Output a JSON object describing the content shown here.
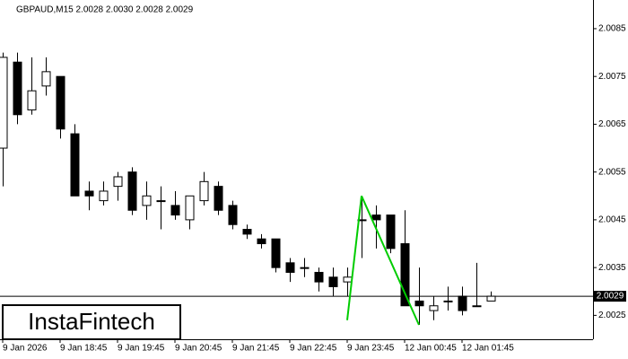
{
  "chart_data": {
    "type": "candlestick",
    "title": "GBPAUD,M15  2.0028 2.0030 2.0028 2.0029",
    "brand": "InstaFintech",
    "categories": [
      "9 Jan 2026",
      null,
      null,
      null,
      "9 Jan 18:45",
      null,
      null,
      null,
      "9 Jan 19:45",
      null,
      null,
      null,
      "9 Jan 20:45",
      null,
      null,
      null,
      "9 Jan 21:45",
      null,
      null,
      null,
      "9 Jan 22:45",
      null,
      null,
      null,
      "9 Jan 23:45",
      null,
      null,
      null,
      "12 Jan 00:45",
      null,
      null,
      null,
      "12 Jan 01:45",
      null,
      null
    ],
    "open": [
      2.006,
      2.0078,
      2.0068,
      2.0073,
      2.0075,
      2.0063,
      2.0051,
      2.0049,
      2.0052,
      2.0055,
      2.0048,
      2.0049,
      2.0048,
      2.0045,
      2.0049,
      2.0052,
      2.0048,
      2.0043,
      2.0041,
      2.0041,
      2.0036,
      2.0035,
      2.0034,
      2.0033,
      2.0032,
      2.0045,
      2.0046,
      2.0046,
      2.004,
      2.0028,
      2.0026,
      2.0028,
      2.0029,
      2.0027,
      2.0028
    ],
    "high": [
      2.008,
      2.008,
      2.0079,
      2.0079,
      2.0075,
      2.0065,
      2.0053,
      2.0053,
      2.0055,
      2.0056,
      2.0053,
      2.0052,
      2.0051,
      2.005,
      2.0055,
      2.0053,
      2.0049,
      2.0044,
      2.0042,
      2.0041,
      2.0037,
      2.0037,
      2.0035,
      2.0035,
      2.0035,
      2.005,
      2.0048,
      2.0046,
      2.0047,
      2.0035,
      2.0029,
      2.0031,
      2.0031,
      2.0036,
      2.003
    ],
    "low": [
      2.0052,
      2.0065,
      2.0067,
      2.0071,
      2.0062,
      2.005,
      2.0047,
      2.0048,
      2.0049,
      2.0046,
      2.0045,
      2.0043,
      2.0045,
      2.0043,
      2.0048,
      2.0046,
      2.0043,
      2.0041,
      2.0039,
      2.0034,
      2.0032,
      2.0033,
      2.003,
      2.0029,
      2.0029,
      2.0037,
      2.0039,
      2.0038,
      2.0027,
      2.0023,
      2.0024,
      2.0026,
      2.0025,
      2.0027,
      2.0028
    ],
    "close": [
      2.0079,
      2.0067,
      2.0072,
      2.0076,
      2.0064,
      2.005,
      2.005,
      2.0051,
      2.0054,
      2.0047,
      2.005,
      2.0049,
      2.0046,
      2.005,
      2.0053,
      2.0047,
      2.0044,
      2.0042,
      2.004,
      2.0035,
      2.0034,
      2.0035,
      2.0032,
      2.0031,
      2.0033,
      2.0045,
      2.0045,
      2.0039,
      2.0027,
      2.0027,
      2.0027,
      2.0028,
      2.0026,
      2.0027,
      2.0029
    ],
    "up_color": "#ffffff",
    "down_color": "#000000",
    "last_price": 2.0029,
    "pattern": {
      "color": "#00cc00",
      "points": [
        {
          "index": 24,
          "price": 2.0024
        },
        {
          "index": 25,
          "price": 2.005
        },
        {
          "index": 29,
          "price": 2.0023
        }
      ]
    },
    "ylim": [
      2.002,
      2.0091
    ],
    "yticks": [
      2.0025,
      2.0035,
      2.0045,
      2.0055,
      2.0065,
      2.0075,
      2.0085
    ]
  }
}
